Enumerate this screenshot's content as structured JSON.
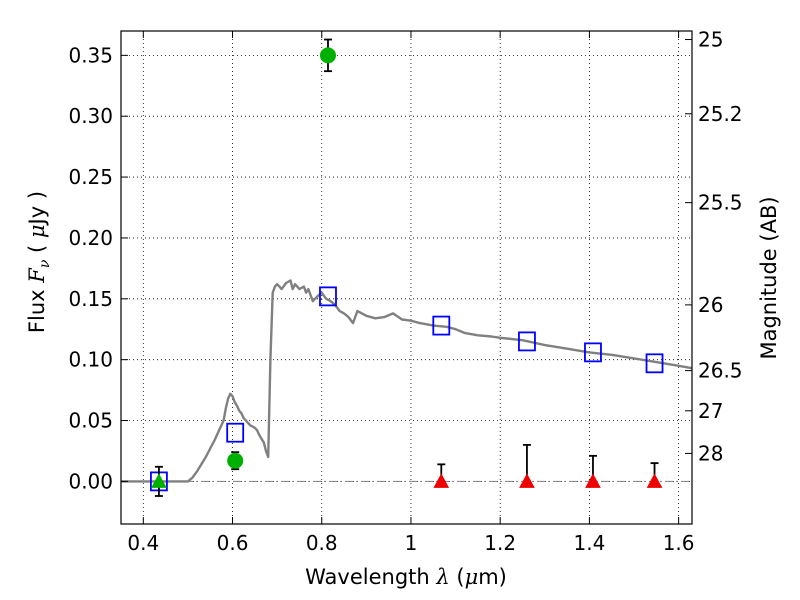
{
  "chart_data": {
    "type": "scatter",
    "xlabel": "Wavelength  λ (μm)",
    "ylabel": "Flux  Fν  ( μJy )",
    "y2label": "Magnitude (AB)",
    "xlim": [
      0.35,
      1.63
    ],
    "ylim": [
      -0.035,
      0.37
    ],
    "grid": true,
    "x_ticks": [
      0.4,
      0.6,
      0.8,
      1.0,
      1.2,
      1.4,
      1.6
    ],
    "x_tick_labels": [
      "0.4",
      "0.6",
      "0.8",
      "1",
      "1.2",
      "1.4",
      "1.6"
    ],
    "y_ticks": [
      0.0,
      0.05,
      0.1,
      0.15,
      0.2,
      0.25,
      0.3,
      0.35
    ],
    "y_tick_labels": [
      "0.00",
      "0.05",
      "0.10",
      "0.15",
      "0.20",
      "0.25",
      "0.30",
      "0.35"
    ],
    "y2_ticks": [
      {
        "label": "25",
        "flux": 0.363
      },
      {
        "label": "25.2",
        "flux": 0.302
      },
      {
        "label": "25.5",
        "flux": 0.229
      },
      {
        "label": "26",
        "flux": 0.145
      },
      {
        "label": "26.5",
        "flux": 0.091
      },
      {
        "label": "27",
        "flux": 0.058
      },
      {
        "label": "28",
        "flux": 0.023
      }
    ],
    "series": [
      {
        "type": "line",
        "color": "#808080",
        "x": [
          0.35,
          0.45,
          0.5,
          0.51,
          0.52,
          0.53,
          0.54,
          0.55,
          0.56,
          0.57,
          0.58,
          0.585,
          0.59,
          0.595,
          0.6,
          0.605,
          0.61,
          0.615,
          0.62,
          0.625,
          0.63,
          0.635,
          0.64,
          0.645,
          0.65,
          0.655,
          0.66,
          0.665,
          0.67,
          0.675,
          0.68,
          0.685,
          0.69,
          0.695,
          0.7,
          0.705,
          0.71,
          0.72,
          0.73,
          0.735,
          0.74,
          0.745,
          0.75,
          0.76,
          0.765,
          0.77,
          0.78,
          0.79,
          0.8,
          0.81,
          0.82,
          0.83,
          0.84,
          0.85,
          0.86,
          0.87,
          0.88,
          0.89,
          0.9,
          0.92,
          0.94,
          0.96,
          0.98,
          1.0,
          1.02,
          1.05,
          1.08,
          1.1,
          1.12,
          1.15,
          1.18,
          1.2,
          1.25,
          1.3,
          1.35,
          1.4,
          1.45,
          1.5,
          1.55,
          1.6,
          1.63
        ],
        "y": [
          0.0,
          0.0,
          0.0,
          0.003,
          0.008,
          0.014,
          0.02,
          0.027,
          0.034,
          0.042,
          0.05,
          0.06,
          0.068,
          0.072,
          0.07,
          0.065,
          0.062,
          0.058,
          0.056,
          0.052,
          0.05,
          0.048,
          0.046,
          0.045,
          0.044,
          0.042,
          0.038,
          0.035,
          0.032,
          0.025,
          0.02,
          0.1,
          0.155,
          0.16,
          0.162,
          0.16,
          0.158,
          0.163,
          0.165,
          0.158,
          0.162,
          0.16,
          0.158,
          0.16,
          0.155,
          0.158,
          0.148,
          0.152,
          0.155,
          0.15,
          0.148,
          0.145,
          0.14,
          0.138,
          0.135,
          0.13,
          0.14,
          0.138,
          0.136,
          0.134,
          0.135,
          0.138,
          0.133,
          0.132,
          0.13,
          0.128,
          0.127,
          0.125,
          0.122,
          0.12,
          0.119,
          0.118,
          0.116,
          0.112,
          0.109,
          0.106,
          0.104,
          0.101,
          0.098,
          0.095,
          0.093
        ]
      },
      {
        "type": "scatter",
        "marker": "square-open",
        "color": "#0000ff",
        "x": [
          0.435,
          0.606,
          0.814,
          1.068,
          1.26,
          1.408,
          1.546
        ],
        "y": [
          0.0,
          0.04,
          0.152,
          0.128,
          0.115,
          0.106,
          0.097
        ]
      },
      {
        "type": "scatter",
        "marker": "circle",
        "color": "#00b000",
        "x": [
          0.606,
          0.814
        ],
        "y": [
          0.017,
          0.35
        ],
        "err": [
          0.007,
          0.013
        ]
      },
      {
        "type": "scatter",
        "marker": "triangle",
        "color": "#00b000",
        "x": [
          0.435
        ],
        "y": [
          0.0
        ],
        "err": [
          0.012
        ]
      },
      {
        "type": "scatter",
        "marker": "triangle",
        "color": "#ee0000",
        "x": [
          1.068,
          1.26,
          1.408,
          1.546
        ],
        "y": [
          0.0,
          0.0,
          0.0,
          0.0
        ],
        "err_up": [
          0.014,
          0.03,
          0.021,
          0.015
        ]
      }
    ]
  }
}
